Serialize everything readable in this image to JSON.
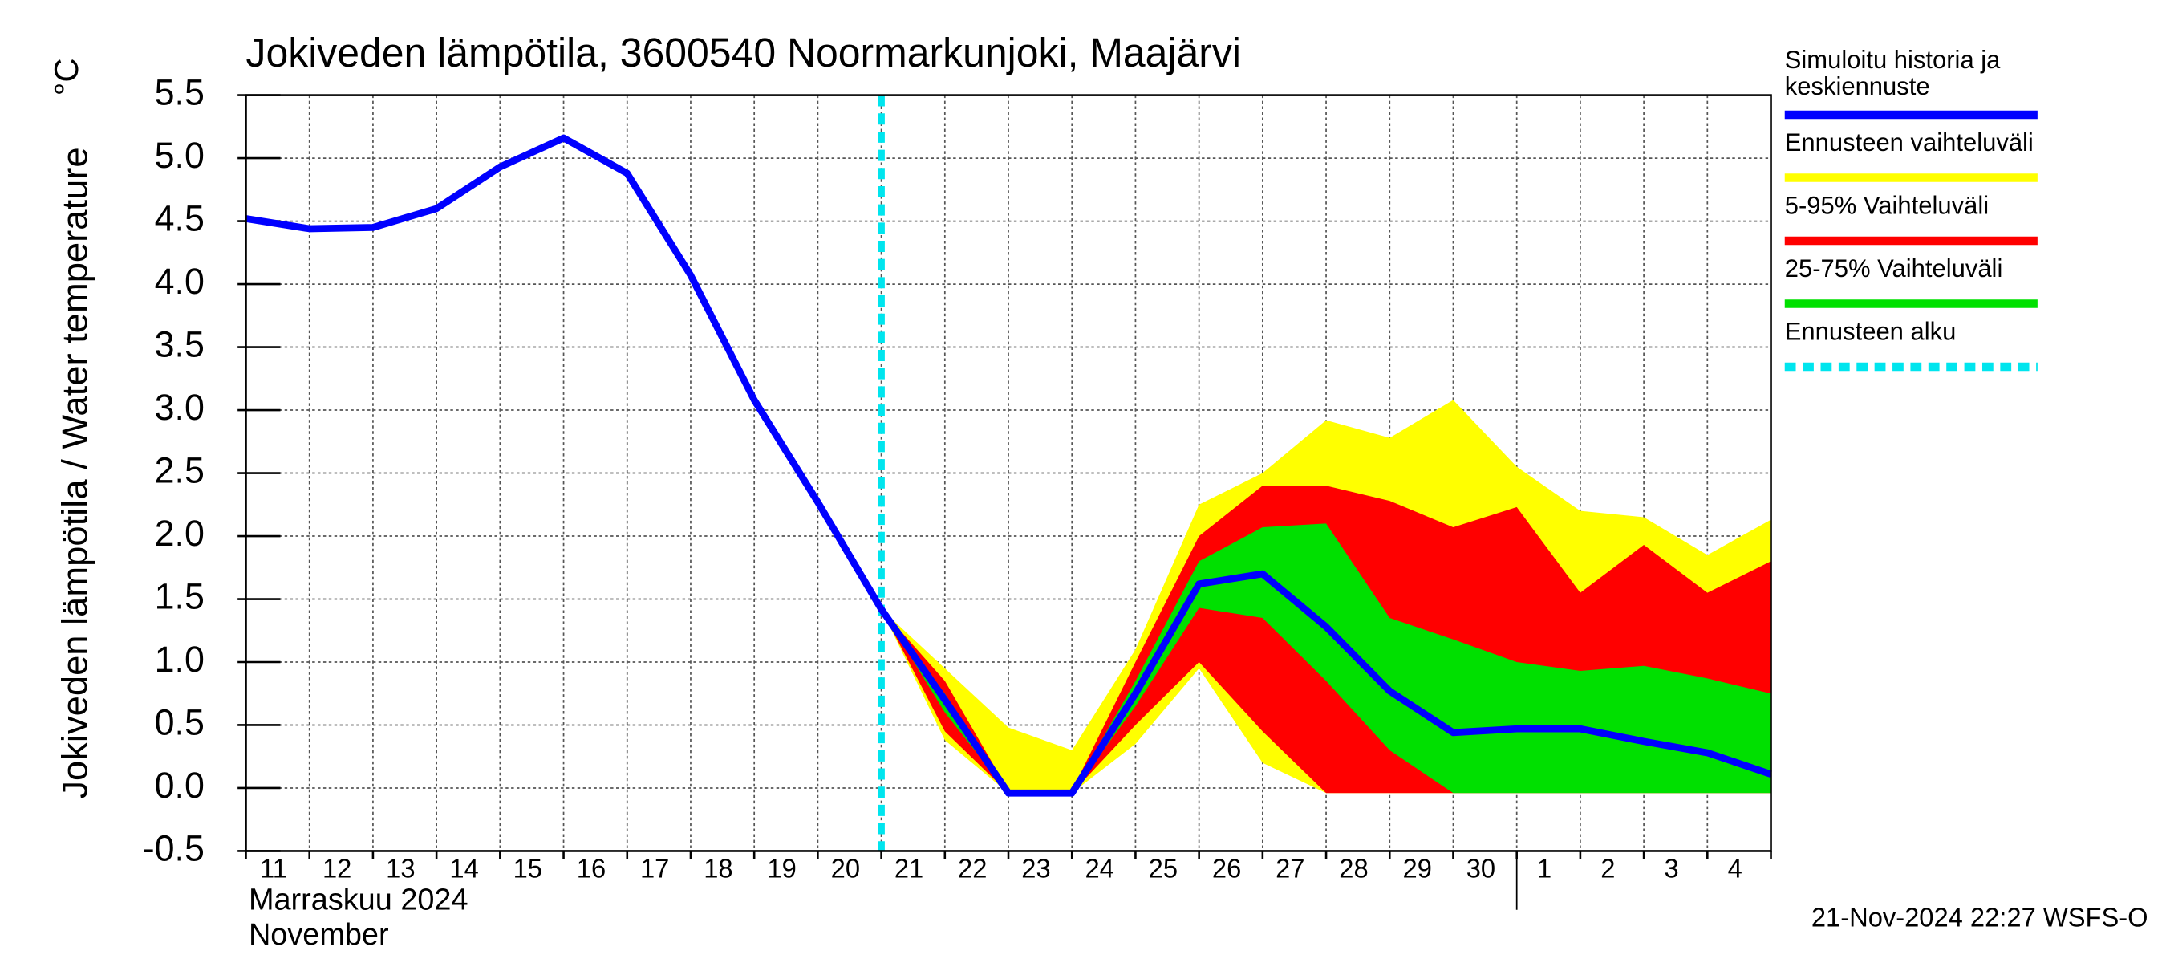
{
  "chart_data": {
    "type": "line",
    "title": "Jokiveden lämpötila, 3600540 Noormarkunjoki, Maajärvi",
    "y_label": "Jokiveden lämpötila / Water temperature",
    "y_unit": "°C",
    "x_label_fi": "Marraskuu 2024",
    "x_label_en": "November",
    "timestamp": "21-Nov-2024 22:27 WSFS-O",
    "categories": [
      "11",
      "12",
      "13",
      "14",
      "15",
      "16",
      "17",
      "18",
      "19",
      "20",
      "21",
      "22",
      "23",
      "24",
      "25",
      "26",
      "27",
      "28",
      "29",
      "30",
      "1",
      "2",
      "3",
      "4",
      null
    ],
    "ylim": [
      -0.5,
      5.5
    ],
    "yticks": [
      -0.5,
      {
        "value": 0,
        "label": "0.0"
      },
      0.5,
      {
        "value": 1,
        "label": "1.0"
      },
      1.5,
      {
        "value": 2,
        "label": "2.0"
      },
      2.5,
      {
        "value": 3,
        "label": "3.0"
      },
      3.5,
      {
        "value": 4,
        "label": "4.0"
      },
      4.5,
      {
        "value": 5,
        "label": "5.0"
      },
      5.5
    ],
    "grid": true,
    "forecast_start_category": "21",
    "bands": [
      {
        "name": "Ennusteen vaihteluväli",
        "color": "#ffff00",
        "values": [
          null,
          null,
          null,
          null,
          null,
          null,
          null,
          null,
          null,
          null,
          1.42,
          0.95,
          0.48,
          0.3,
          1.1,
          2.25,
          2.5,
          2.92,
          2.78,
          3.08,
          2.55,
          2.2,
          2.15,
          1.85,
          2.13
        ],
        "low": [
          null,
          null,
          null,
          null,
          null,
          null,
          null,
          null,
          null,
          null,
          1.42,
          0.38,
          -0.04,
          -0.04,
          0.35,
          0.95,
          0.2,
          -0.04,
          -0.04,
          -0.04,
          -0.04,
          -0.04,
          -0.04,
          -0.04,
          -0.04
        ]
      },
      {
        "name": "5-95% Vaihteluväli",
        "color": "#ff0000",
        "values": [
          null,
          null,
          null,
          null,
          null,
          null,
          null,
          null,
          null,
          null,
          1.42,
          0.85,
          -0.02,
          -0.02,
          1.0,
          2.0,
          2.4,
          2.4,
          2.28,
          2.07,
          2.23,
          1.55,
          1.93,
          1.55,
          1.8
        ],
        "low": [
          null,
          null,
          null,
          null,
          null,
          null,
          null,
          null,
          null,
          null,
          1.42,
          0.45,
          -0.04,
          -0.04,
          0.5,
          1.0,
          0.45,
          -0.04,
          -0.04,
          -0.04,
          -0.04,
          -0.04,
          -0.04,
          -0.04,
          -0.04
        ]
      },
      {
        "name": "25-75% Vaihteluväli",
        "color": "#00e000",
        "values": [
          null,
          null,
          null,
          null,
          null,
          null,
          null,
          null,
          null,
          null,
          1.42,
          0.75,
          -0.03,
          -0.03,
          0.85,
          1.8,
          2.07,
          2.1,
          1.35,
          1.18,
          1.0,
          0.93,
          0.97,
          0.87,
          0.75
        ],
        "low": [
          null,
          null,
          null,
          null,
          null,
          null,
          null,
          null,
          null,
          null,
          1.42,
          0.6,
          -0.04,
          -0.04,
          0.65,
          1.43,
          1.35,
          0.85,
          0.3,
          -0.04,
          -0.04,
          -0.04,
          -0.04,
          -0.04,
          -0.04
        ]
      }
    ],
    "series": [
      {
        "name": "Simuloitu historia ja keskiennuste",
        "color": "#0000ff",
        "values": [
          4.52,
          4.44,
          4.45,
          4.6,
          4.93,
          5.16,
          4.88,
          4.07,
          3.08,
          2.27,
          1.42,
          0.7,
          -0.04,
          -0.04,
          0.75,
          1.62,
          1.7,
          1.28,
          0.77,
          0.44,
          0.47,
          0.47,
          0.37,
          0.28,
          0.11
        ]
      }
    ],
    "forecast_line": {
      "name": "Ennusteen alku",
      "color": "#00e5ee"
    }
  }
}
